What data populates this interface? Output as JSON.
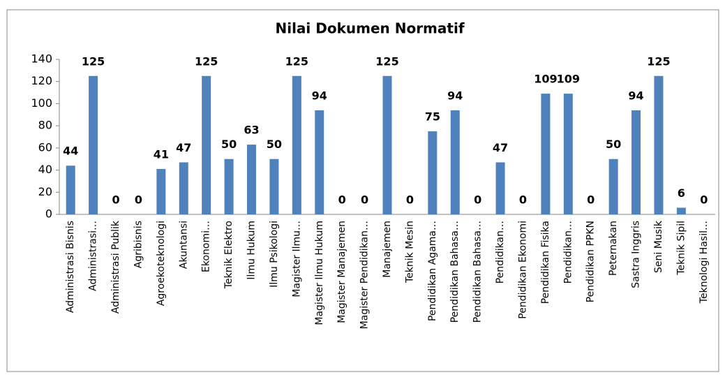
{
  "chart_data": {
    "type": "bar",
    "title": "Nilai Dokumen Normatif",
    "categories": [
      "Administrasi Bisnis",
      "Administrasi…",
      "Administrasi Publik",
      "Agribisnis",
      "Agroekoteknologi",
      "Akuntansi",
      "Ekonomi…",
      "Teknik Elektro",
      "Ilmu Hukum",
      "Ilmu Psikologi",
      "Magister Ilmu…",
      "Magister Ilmu Hukum",
      "Magister Manajemen",
      "Magister Pendidikan…",
      "Manajemen",
      "Teknik Mesin",
      "Pendidikan Agama…",
      "Pendidikan Bahasa…",
      "Pendidikan Bahasa…",
      "Pendidikan…",
      "Pendidikan Ekonomi",
      "Pendidikan Fisika",
      "Pendidikan…",
      "Pendidikan PPKN",
      "Peternakan",
      "Sastra Inggris",
      "Seni Musik",
      "Teknik Sipil",
      "Teknologi Hasil…"
    ],
    "values": [
      44,
      125,
      0,
      0,
      41,
      47,
      125,
      50,
      63,
      50,
      125,
      94,
      0,
      0,
      125,
      0,
      75,
      94,
      0,
      47,
      0,
      109,
      109,
      0,
      50,
      94,
      125,
      6,
      0
    ],
    "color": "#4f81bd",
    "ylim": [
      0,
      140
    ],
    "yticks": [
      0,
      20,
      40,
      60,
      80,
      100,
      120,
      140
    ],
    "grid": false
  }
}
